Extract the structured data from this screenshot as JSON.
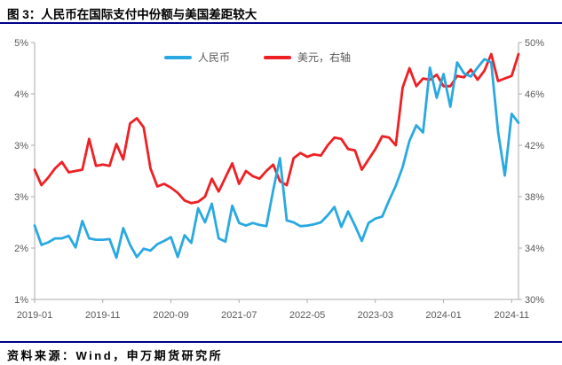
{
  "header": {
    "title": "图 3：人民币在国际支付中份额与美国差距较大"
  },
  "footer": {
    "source": "资料来源：Wind，申万期货研究所"
  },
  "colors": {
    "rmb_line": "#29A9E1",
    "usd_line": "#EE2024",
    "rule_navy": "#000089",
    "axis_line": "#ABABAB",
    "tick_text": "#595959"
  },
  "legend": [
    {
      "label": "人民币",
      "color": "#29A9E1"
    },
    {
      "label": "美元，右轴",
      "color": "#EE2024"
    }
  ],
  "chart_data": {
    "type": "line",
    "title": "人民币在国际支付中份额与美国差距较大",
    "x_start": "2019-01",
    "x_end": "2024-12",
    "x_frequency": "monthly",
    "x_tick_labels": [
      "2019-01",
      "2019-11",
      "2020-09",
      "2021-07",
      "2022-05",
      "2023-03",
      "2024-01",
      "2024-11"
    ],
    "x_tick_month_indices": [
      0,
      10,
      20,
      30,
      40,
      50,
      60,
      70
    ],
    "grid": false,
    "legend_position": "top-center",
    "left_axis": {
      "range": [
        1,
        5
      ],
      "tick_labels_bottom_to_top": [
        "1%",
        "2%",
        "3%",
        "3%",
        "4%",
        "5%"
      ]
    },
    "right_axis": {
      "range": [
        30,
        50
      ],
      "tick_labels_bottom_to_top": [
        "30%",
        "34%",
        "38%",
        "42%",
        "46%",
        "50%"
      ]
    },
    "series": [
      {
        "name": "人民币",
        "axis": "left",
        "color": "#29A9E1",
        "values": [
          2.15,
          1.85,
          1.89,
          1.95,
          1.95,
          1.99,
          1.81,
          2.22,
          1.95,
          1.93,
          1.93,
          1.94,
          1.65,
          2.11,
          1.85,
          1.66,
          1.79,
          1.76,
          1.86,
          1.91,
          1.97,
          1.66,
          2.0,
          1.88,
          2.42,
          2.2,
          2.49,
          1.95,
          1.9,
          2.46,
          2.19,
          2.15,
          2.19,
          2.16,
          2.14,
          2.7,
          3.2,
          2.23,
          2.2,
          2.14,
          2.15,
          2.17,
          2.2,
          2.31,
          2.44,
          2.13,
          2.37,
          2.15,
          1.91,
          2.19,
          2.26,
          2.29,
          2.54,
          2.77,
          3.06,
          3.47,
          3.71,
          3.6,
          4.61,
          4.14,
          4.51,
          4.0,
          4.69,
          4.52,
          4.47,
          4.61,
          4.74,
          4.69,
          3.61,
          2.93,
          3.89,
          3.75
        ]
      },
      {
        "name": "美元，右轴",
        "axis": "right",
        "color": "#EE2024",
        "values": [
          40.1,
          38.9,
          39.5,
          40.2,
          40.7,
          39.9,
          40.0,
          40.1,
          42.5,
          40.4,
          40.5,
          40.4,
          42.1,
          40.9,
          43.7,
          44.1,
          43.4,
          40.2,
          38.8,
          39.0,
          38.7,
          38.3,
          37.7,
          37.5,
          37.6,
          38.0,
          39.4,
          38.4,
          39.5,
          40.6,
          39.0,
          40.0,
          39.6,
          39.4,
          40.0,
          40.5,
          39.2,
          38.9,
          41.0,
          41.4,
          41.1,
          41.3,
          41.2,
          42.0,
          42.6,
          42.5,
          41.7,
          41.6,
          40.1,
          40.9,
          41.7,
          42.7,
          42.6,
          42.0,
          46.5,
          48.0,
          46.6,
          47.2,
          47.1,
          47.5,
          46.6,
          46.6,
          47.4,
          47.3,
          47.9,
          47.1,
          47.8,
          49.1,
          47.0,
          47.2,
          47.4,
          49.1
        ]
      }
    ]
  }
}
